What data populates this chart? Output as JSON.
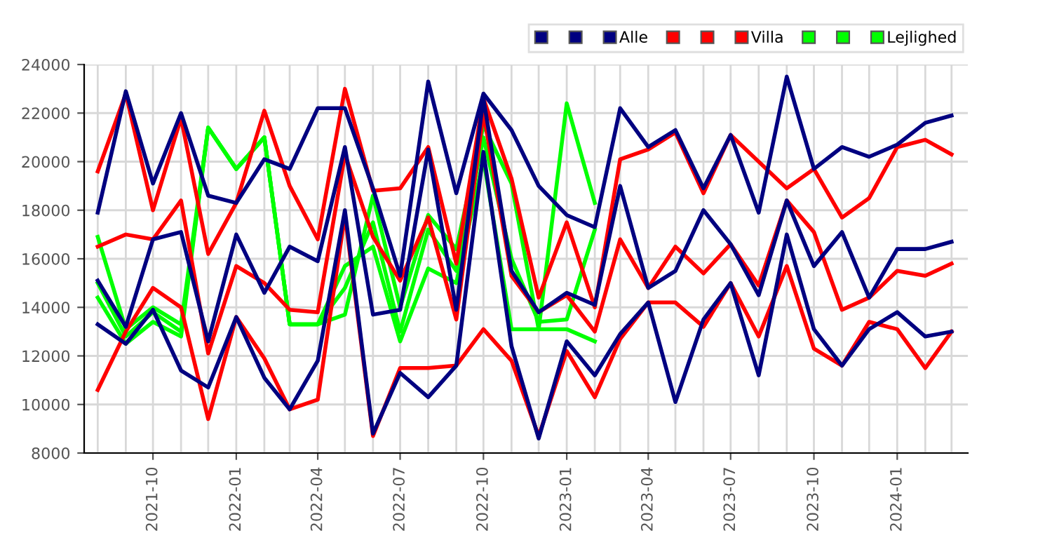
{
  "chart_data": {
    "type": "line",
    "x": [
      "2021-08",
      "2021-09",
      "2021-10",
      "2021-11",
      "2021-12",
      "2022-01",
      "2022-02",
      "2022-03",
      "2022-04",
      "2022-05",
      "2022-06",
      "2022-07",
      "2022-08",
      "2022-09",
      "2022-10",
      "2022-11",
      "2022-12",
      "2023-01",
      "2023-02",
      "2023-03",
      "2023-04",
      "2023-05",
      "2023-06",
      "2023-07",
      "2023-08",
      "2023-09",
      "2023-10",
      "2023-11",
      "2023-12",
      "2024-01",
      "2024-02",
      "2024-03"
    ],
    "series": [
      {
        "color": "#000080",
        "values": [
          17900,
          22900,
          19100,
          22000,
          18600,
          18300,
          20100,
          19700,
          22200,
          22200,
          18900,
          15300,
          23300,
          18700,
          22800,
          21300,
          19000,
          17800,
          17300,
          22200,
          20600,
          21300,
          18900,
          21100,
          17900,
          23500,
          19700,
          20600,
          20200,
          20700,
          21600,
          21900
        ]
      },
      {
        "color": "#000080",
        "values": [
          15100,
          13200,
          16800,
          17100,
          12600,
          17000,
          14600,
          16500,
          15900,
          20600,
          13700,
          13900,
          20500,
          13900,
          22600,
          15500,
          13800,
          14600,
          14100,
          19000,
          14800,
          15500,
          18000,
          16600,
          14500,
          18400,
          15700,
          17100,
          14400,
          16400,
          16400,
          16700
        ]
      },
      {
        "name": "Alle",
        "color": "#000080",
        "values": [
          13300,
          12500,
          13900,
          11400,
          10700,
          13600,
          11100,
          9800,
          11800,
          18000,
          8800,
          11300,
          10300,
          11600,
          20400,
          12400,
          8600,
          12600,
          11200,
          12900,
          14200,
          10100,
          13500,
          15000,
          11200,
          17000,
          13100,
          11600,
          13100,
          13800,
          12800,
          13000
        ]
      },
      {
        "color": "#ff0000",
        "values": [
          19600,
          22800,
          18000,
          21800,
          16200,
          18300,
          22100,
          19000,
          16800,
          23000,
          18800,
          18900,
          20600,
          15800,
          22600,
          19300,
          14400,
          17500,
          14000,
          20100,
          20500,
          21200,
          18700,
          21100,
          20000,
          18900,
          19700,
          17700,
          18500,
          20600,
          20900,
          20300
        ]
      },
      {
        "color": "#ff0000",
        "values": [
          16500,
          17000,
          16800,
          18400,
          12100,
          15700,
          15000,
          13900,
          13800,
          20300,
          16900,
          15100,
          17700,
          13500,
          22000,
          15300,
          13800,
          14500,
          13000,
          16800,
          14800,
          16500,
          15400,
          16600,
          14900,
          18400,
          17100,
          13900,
          14400,
          15500,
          15300,
          15800
        ]
      },
      {
        "name": "Villa",
        "color": "#ff0000",
        "values": [
          10600,
          13000,
          14800,
          14000,
          9400,
          13600,
          11900,
          9800,
          10200,
          17800,
          8700,
          11500,
          11500,
          11600,
          13100,
          11800,
          8700,
          12200,
          10300,
          12700,
          14200,
          14200,
          13200,
          15000,
          12800,
          15700,
          12300,
          11600,
          13400,
          13100,
          11500,
          13000
        ]
      },
      {
        "color": "#00ff00",
        "values": [
          16900,
          13100,
          14000,
          13300,
          21400,
          19700,
          21000,
          13300,
          13300,
          13700,
          18600,
          14000,
          17800,
          16400,
          21500,
          19100,
          13100,
          22400,
          18300,
          null,
          null,
          null,
          null,
          null,
          null,
          null,
          null,
          null,
          null,
          null,
          null,
          null
        ]
      },
      {
        "color": "#00ff00",
        "values": [
          15000,
          12800,
          13800,
          13000,
          21400,
          19700,
          21000,
          13300,
          13300,
          14800,
          17500,
          13000,
          17200,
          15500,
          21000,
          16000,
          13400,
          13500,
          17200,
          null,
          null,
          null,
          null,
          null,
          null,
          null,
          null,
          null,
          null,
          null,
          null,
          null
        ]
      },
      {
        "name": "Lejlighed",
        "color": "#00ff00",
        "values": [
          14400,
          12500,
          13400,
          12800,
          21400,
          19700,
          21000,
          13300,
          13300,
          15700,
          16500,
          12600,
          15600,
          15000,
          20100,
          13100,
          13100,
          13100,
          12600,
          null,
          null,
          null,
          null,
          null,
          null,
          null,
          null,
          null,
          null,
          null,
          null,
          null
        ]
      }
    ],
    "xlim": [
      "2021-07-17",
      "2024-03-19"
    ],
    "xticks": [
      "2021-10",
      "2022-01",
      "2022-04",
      "2022-07",
      "2022-10",
      "2023-01",
      "2023-04",
      "2023-07",
      "2023-10",
      "2024-01"
    ],
    "ylim": [
      8000,
      24000
    ],
    "yticks": [
      8000,
      10000,
      12000,
      14000,
      16000,
      18000,
      20000,
      22000,
      24000
    ],
    "grid": true,
    "legend": "top right",
    "marker": "none",
    "line_style": "solid"
  }
}
